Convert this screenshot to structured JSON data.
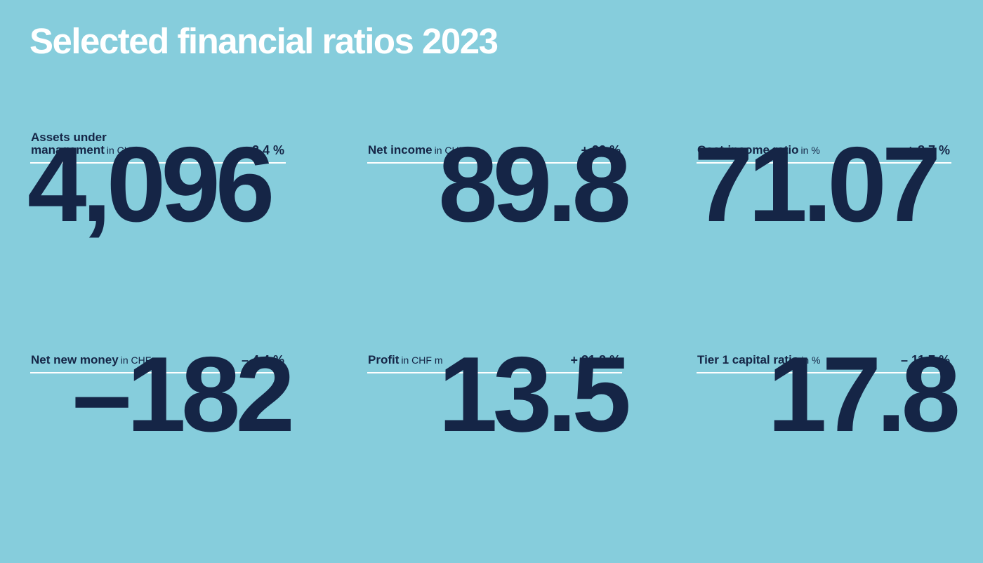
{
  "title": "Selected financial ratios 2023",
  "kpis": [
    {
      "label_line1": "Assets under",
      "label_line2": "management",
      "unit": "in CHF m",
      "change": "+ 2.4 %",
      "value": "4,096"
    },
    {
      "label": "Net income",
      "unit": "in CHF m",
      "change": "+ 22 %",
      "value": "89.8"
    },
    {
      "label": "Cost-income ratio",
      "unit": "in %",
      "change": "+ 8.7 %",
      "value": "71.07"
    },
    {
      "label": "Net new money",
      "unit": "in CHF m",
      "change": "– 4.4 %",
      "value": "–182"
    },
    {
      "label": "Profit",
      "unit": "in CHF m",
      "change": "+ 31.8 %",
      "value": "13.5"
    },
    {
      "label": "Tier 1 capital ratio",
      "unit": "in %",
      "change": "– 11.7 %",
      "value": "17.8"
    }
  ]
}
